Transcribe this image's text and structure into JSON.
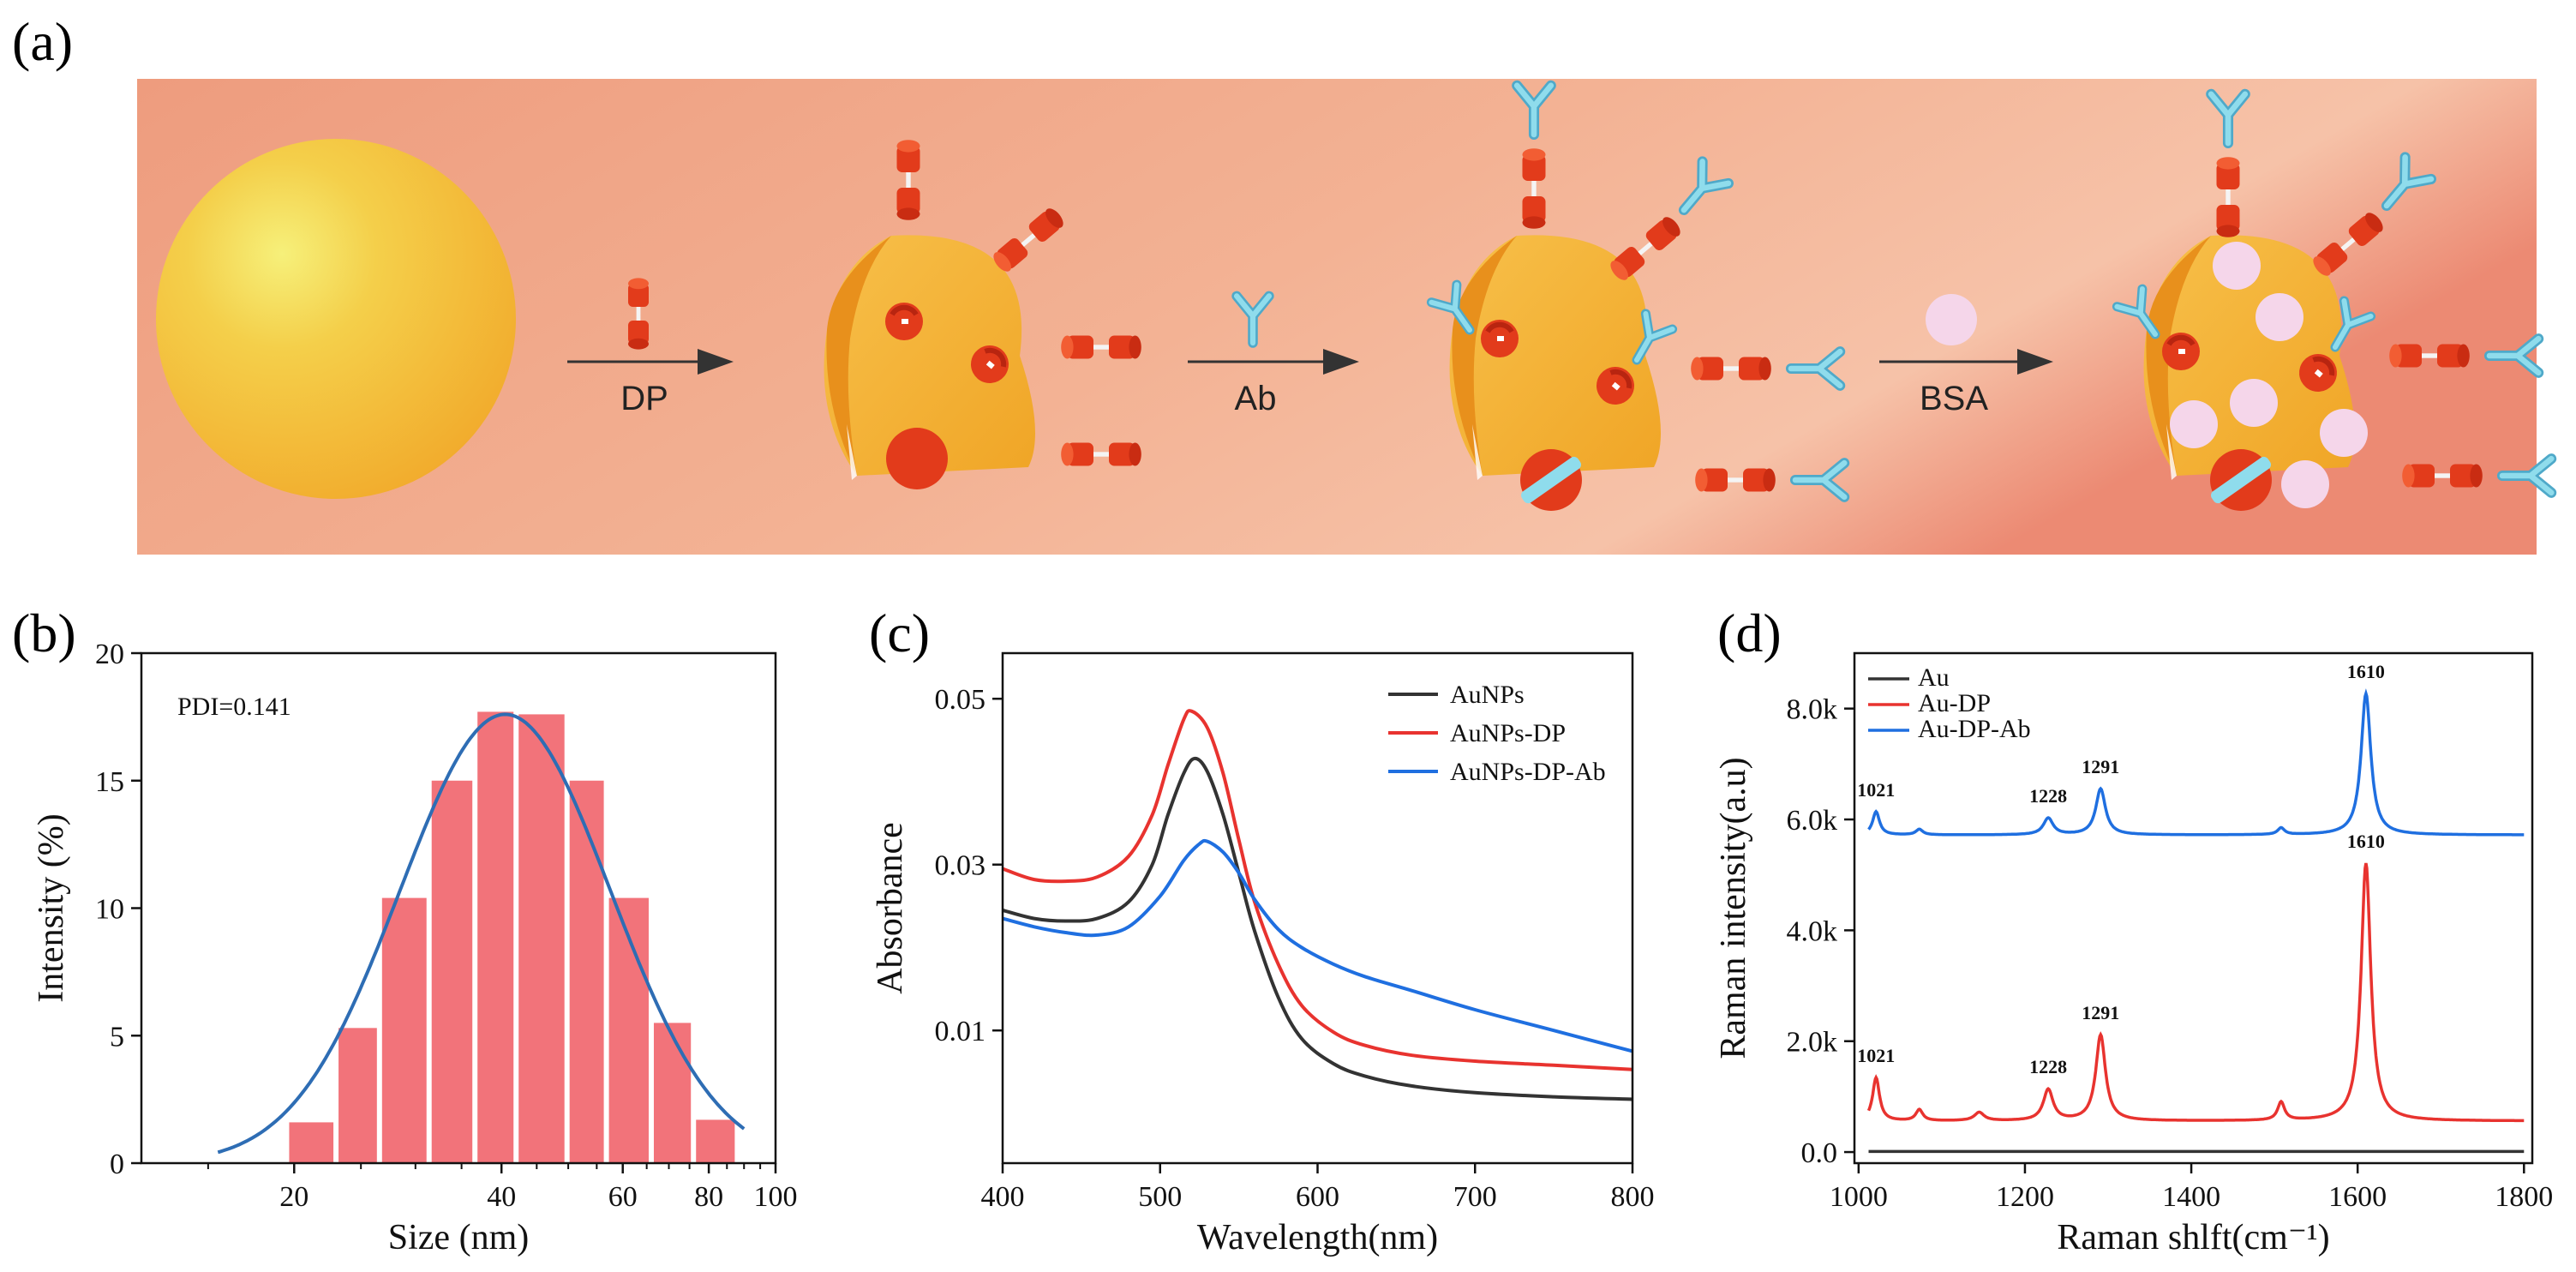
{
  "panels": {
    "a": "(a)",
    "b": "(b)",
    "c": "(c)",
    "d": "(d)"
  },
  "schematic": {
    "steps": [
      {
        "label": "DP",
        "reagent": "DP"
      },
      {
        "label": "Ab",
        "reagent": "Ab"
      },
      {
        "label": "BSA",
        "reagent": "BSA"
      }
    ],
    "colors": {
      "banner_left": "#ee9c7e",
      "banner_right": "#f4b99a",
      "gold": "#f2ad2c",
      "linker": "#e23b1b",
      "antibody": "#7fd0e3",
      "bsa": "#f5d6ea"
    }
  },
  "chart_data": [
    {
      "id": "b",
      "type": "bar",
      "xscale": "log",
      "xlabel": "Size (nm)",
      "ylabel": "Intensity (%)",
      "xlim": [
        12,
        100
      ],
      "ylim": [
        0,
        20
      ],
      "xticks": [
        20,
        40,
        60,
        80,
        100
      ],
      "yticks": [
        0,
        5,
        10,
        15,
        20
      ],
      "annotation": "PDI=0.141",
      "bar_color": "#f2737a",
      "fit_color": "#2e6db4",
      "bars": [
        {
          "left": 19.5,
          "right": 23.0,
          "value": 1.6
        },
        {
          "left": 23.0,
          "right": 26.6,
          "value": 5.3
        },
        {
          "left": 26.6,
          "right": 31.4,
          "value": 10.4
        },
        {
          "left": 31.4,
          "right": 36.6,
          "value": 15.0
        },
        {
          "left": 36.6,
          "right": 42.0,
          "value": 17.7
        },
        {
          "left": 42.0,
          "right": 49.8,
          "value": 17.6
        },
        {
          "left": 49.8,
          "right": 56.8,
          "value": 15.0
        },
        {
          "left": 56.8,
          "right": 66.0,
          "value": 10.4
        },
        {
          "left": 66.0,
          "right": 76.0,
          "value": 5.5
        },
        {
          "left": 76.0,
          "right": 88.0,
          "value": 1.7
        }
      ],
      "fit": {
        "peak_size": 40.5,
        "peak_value": 17.6,
        "sigma_log10": 0.153,
        "range": [
          15.5,
          90
        ]
      }
    },
    {
      "id": "c",
      "type": "line",
      "xlabel": "Wavelength(nm)",
      "ylabel": "Absorbance",
      "xlim": [
        400,
        800
      ],
      "ylim": [
        -0.006,
        0.0555
      ],
      "xticks": [
        400,
        500,
        600,
        700,
        800
      ],
      "yticks": [
        0.01,
        0.03,
        0.05
      ],
      "ytick_labels": [
        "0.01",
        "0.03",
        "0.05"
      ],
      "legend_position": "top-right",
      "series": [
        {
          "name": "AuNPs",
          "color": "#333333",
          "x": [
            400,
            420,
            440,
            460,
            480,
            495,
            505,
            515,
            522,
            530,
            540,
            550,
            560,
            575,
            590,
            610,
            630,
            660,
            700,
            750,
            800
          ],
          "y": [
            0.0245,
            0.0235,
            0.0232,
            0.0235,
            0.0255,
            0.03,
            0.036,
            0.041,
            0.0428,
            0.0412,
            0.036,
            0.029,
            0.022,
            0.014,
            0.009,
            0.006,
            0.0045,
            0.0033,
            0.0025,
            0.002,
            0.0017
          ]
        },
        {
          "name": "AuNPs-DP",
          "color": "#e8332f",
          "x": [
            400,
            420,
            440,
            460,
            480,
            495,
            505,
            515,
            520,
            530,
            540,
            550,
            560,
            575,
            590,
            610,
            630,
            660,
            700,
            750,
            800
          ],
          "y": [
            0.0295,
            0.0282,
            0.028,
            0.0285,
            0.031,
            0.036,
            0.042,
            0.0475,
            0.0485,
            0.0465,
            0.041,
            0.033,
            0.0255,
            0.018,
            0.013,
            0.0098,
            0.0082,
            0.007,
            0.0063,
            0.0058,
            0.0053
          ]
        },
        {
          "name": "AuNPs-DP-Ab",
          "color": "#1f6fe0",
          "x": [
            400,
            420,
            440,
            460,
            480,
            500,
            515,
            525,
            530,
            540,
            550,
            560,
            575,
            590,
            610,
            630,
            660,
            700,
            750,
            800
          ],
          "y": [
            0.0235,
            0.0225,
            0.0218,
            0.0215,
            0.0225,
            0.0262,
            0.0305,
            0.0325,
            0.0328,
            0.0315,
            0.029,
            0.0258,
            0.0222,
            0.02,
            0.018,
            0.0165,
            0.0148,
            0.0125,
            0.01,
            0.0075
          ]
        }
      ]
    },
    {
      "id": "d",
      "type": "line",
      "xlabel": "Raman shlft(cm⁻¹)",
      "ylabel": "Raman intensity(a.u)",
      "xlim": [
        995,
        1810
      ],
      "ylim": [
        -200,
        9000
      ],
      "xticks": [
        1000,
        1200,
        1400,
        1600,
        1800
      ],
      "yticks": [
        0,
        2000,
        4000,
        6000,
        8000
      ],
      "ytick_labels": [
        "0.0",
        "2.0k",
        "4.0k",
        "6.0k",
        "8.0k"
      ],
      "legend_position": "top-left",
      "series": [
        {
          "name": "Au",
          "color": "#333333",
          "baseline": 10,
          "peaks": []
        },
        {
          "name": "Au-DP",
          "color": "#e8332f",
          "baseline": 560,
          "peaks": [
            [
              1021,
              780,
              5
            ],
            [
              1073,
              200,
              5
            ],
            [
              1145,
              150,
              7
            ],
            [
              1228,
              560,
              7
            ],
            [
              1291,
              1550,
              7
            ],
            [
              1508,
              330,
              5
            ],
            [
              1610,
              4650,
              7
            ]
          ]
        },
        {
          "name": "Au-DP-Ab",
          "color": "#1f6fe0",
          "baseline": 5720,
          "peaks": [
            [
              1021,
              420,
              5
            ],
            [
              1073,
              100,
              5
            ],
            [
              1228,
              300,
              7
            ],
            [
              1291,
              830,
              7
            ],
            [
              1508,
              120,
              5
            ],
            [
              1610,
              2550,
              7
            ]
          ]
        }
      ],
      "peak_labels": [
        {
          "series": "Au-DP-Ab",
          "x": 1021,
          "text": "1021"
        },
        {
          "series": "Au-DP-Ab",
          "x": 1228,
          "text": "1228"
        },
        {
          "series": "Au-DP-Ab",
          "x": 1291,
          "text": "1291"
        },
        {
          "series": "Au-DP-Ab",
          "x": 1610,
          "text": "1610"
        },
        {
          "series": "Au-DP",
          "x": 1021,
          "text": "1021"
        },
        {
          "series": "Au-DP",
          "x": 1228,
          "text": "1228"
        },
        {
          "series": "Au-DP",
          "x": 1291,
          "text": "1291"
        },
        {
          "series": "Au-DP",
          "x": 1610,
          "text": "1610"
        }
      ]
    }
  ]
}
